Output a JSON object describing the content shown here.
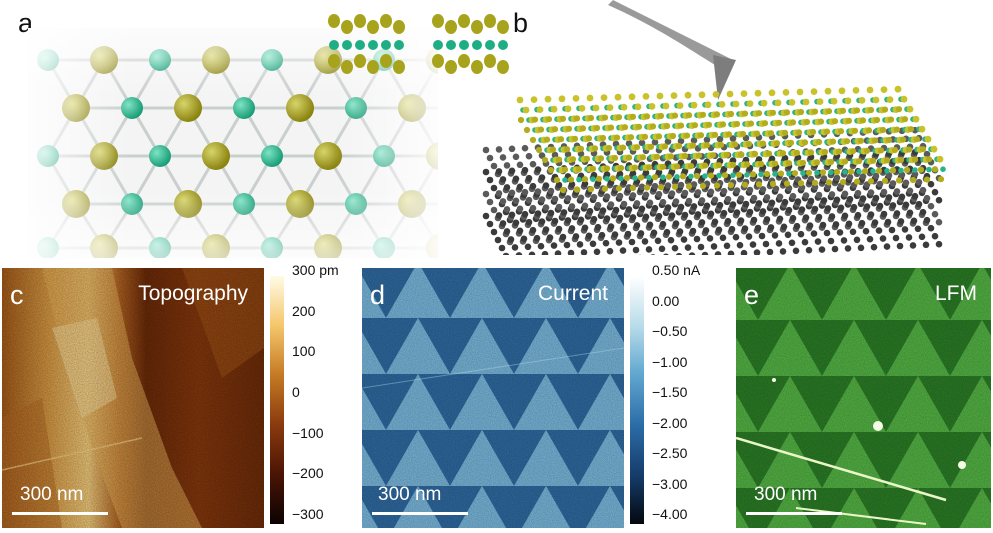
{
  "panels": {
    "a": {
      "letter": "a"
    },
    "b": {
      "letter": "b"
    },
    "c": {
      "letter": "c",
      "title": "Topography",
      "scale_bar": "300 nm",
      "colorbar": {
        "ticks": [
          "300 pm",
          "200",
          "100",
          "0",
          "−100",
          "−200",
          "−300"
        ],
        "colors": [
          "#fffbe6",
          "#f5c66b",
          "#c57a24",
          "#8a3a0d",
          "#4a1405",
          "#0c0202"
        ]
      }
    },
    "d": {
      "letter": "d",
      "title": "Current",
      "scale_bar": "300 nm",
      "colorbar": {
        "ticks": [
          "0.50 nA",
          "0.00",
          "−0.50",
          "−1.00",
          "−1.50",
          "−2.00",
          "−2.50",
          "−3.00",
          "−4.00"
        ],
        "colors": [
          "#ffffff",
          "#b9dcea",
          "#5fa6cf",
          "#2c6da8",
          "#163d6b",
          "#03080f"
        ]
      }
    },
    "e": {
      "letter": "e",
      "title": "LFM",
      "scale_bar": "300 nm"
    }
  }
}
